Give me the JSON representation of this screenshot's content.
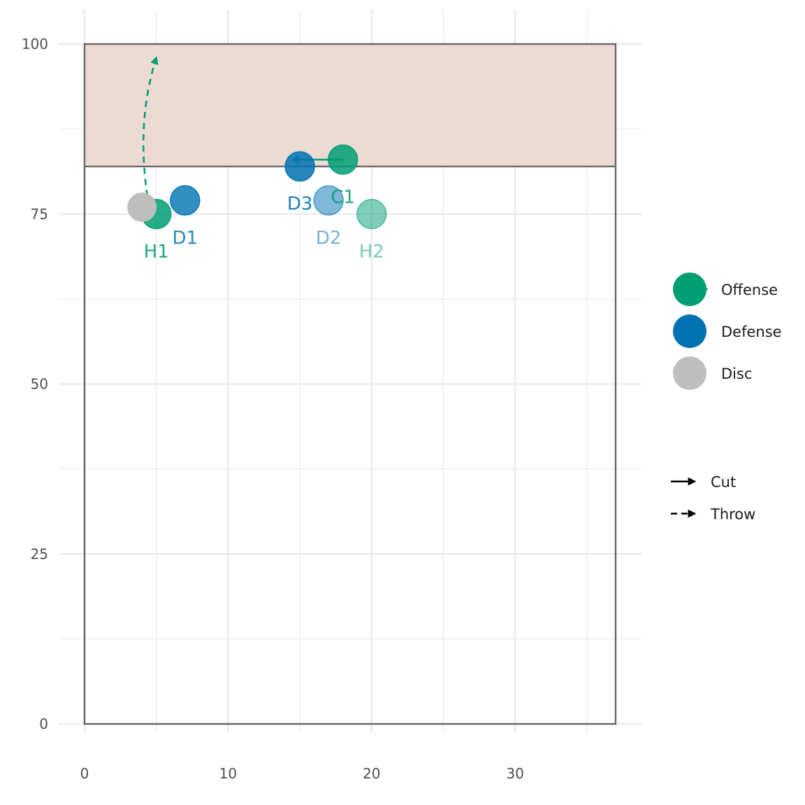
{
  "chart_data": {
    "type": "scatter",
    "title": "",
    "xlabel": "",
    "ylabel": "",
    "xlim": [
      0,
      37
    ],
    "ylim": [
      0,
      100
    ],
    "x_ticks": [
      0,
      10,
      20,
      30
    ],
    "x_tick_labels": [
      "0",
      "10",
      "20",
      "30"
    ],
    "y_ticks": [
      0,
      25,
      50,
      75,
      100
    ],
    "y_tick_labels": [
      "0",
      "25",
      "50",
      "75",
      "100"
    ],
    "grid": true,
    "field": {
      "width": 37,
      "length": 100,
      "endzone_start": 82
    },
    "colors": {
      "offense": "#009E73",
      "defense": "#0072B2",
      "disc": "#BEBEBE",
      "endzone": "#EDDBD3",
      "field_line": "#666666",
      "grid": "#EBEBEB"
    },
    "players": [
      {
        "label": "H1",
        "team": "offense",
        "x": 5,
        "y": 75,
        "opacity": 0.85
      },
      {
        "label": "D1",
        "team": "defense",
        "x": 7,
        "y": 77,
        "opacity": 0.8
      },
      {
        "label": "C1",
        "team": "offense",
        "x": 18,
        "y": 83,
        "opacity": 0.85
      },
      {
        "label": "D3",
        "team": "defense",
        "x": 15,
        "y": 82,
        "opacity": 0.85
      },
      {
        "label": "D2",
        "team": "defense",
        "x": 17,
        "y": 77,
        "opacity": 0.5
      },
      {
        "label": "H2",
        "team": "offense",
        "x": 20,
        "y": 75,
        "opacity": 0.5
      }
    ],
    "disc": {
      "x": 4,
      "y": 76
    },
    "cuts": [
      {
        "from": [
          18,
          83
        ],
        "to": [
          14.5,
          83
        ]
      }
    ],
    "throws": [
      {
        "from": [
          4.5,
          76
        ],
        "control": [
          3.5,
          88
        ],
        "to": [
          5,
          98
        ]
      }
    ],
    "legend": {
      "placement": "right",
      "points": [
        {
          "label": "Offense",
          "key": "offense"
        },
        {
          "label": "Defense",
          "key": "defense"
        },
        {
          "label": "Disc",
          "key": "disc"
        }
      ],
      "lines": [
        {
          "label": "Cut",
          "style": "solid"
        },
        {
          "label": "Throw",
          "style": "dashed"
        }
      ]
    }
  }
}
